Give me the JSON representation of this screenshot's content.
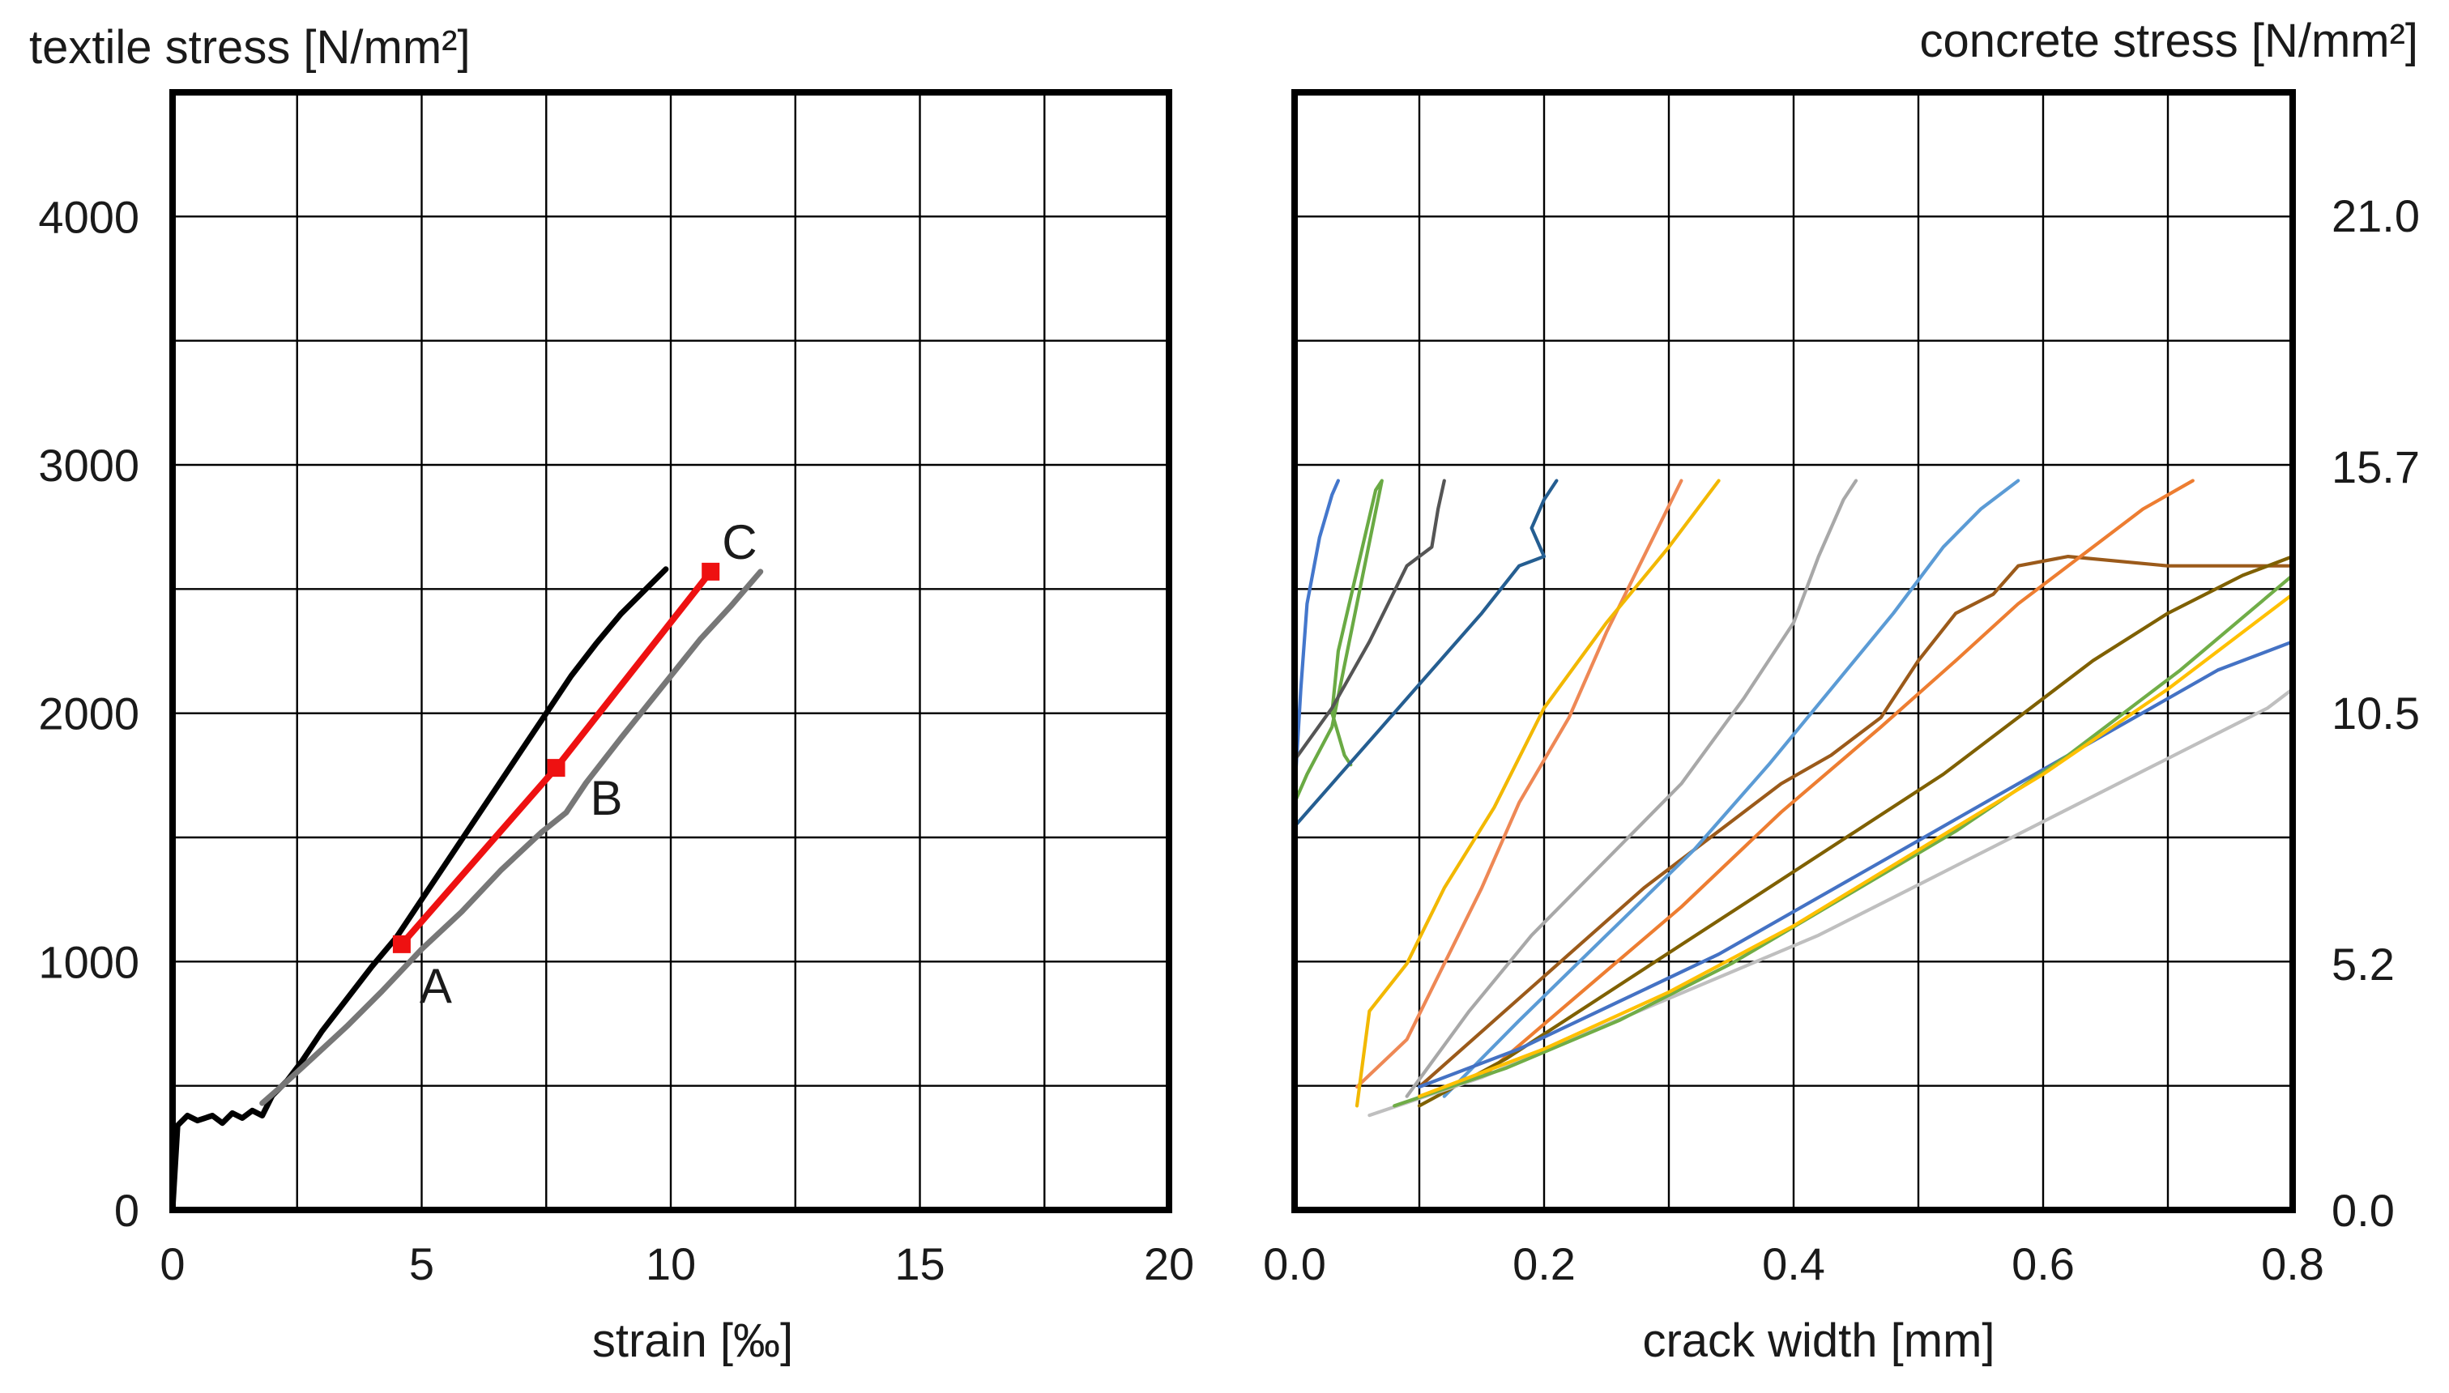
{
  "chart_data": [
    {
      "type": "line",
      "panel": "left",
      "title": "",
      "ylabel": "textile stress [N/mm²]",
      "xlabel": "strain [‰]",
      "xlim": [
        0,
        20
      ],
      "ylim": [
        0,
        4500
      ],
      "x_ticks": [
        0,
        5,
        10,
        15,
        20
      ],
      "y_ticks": [
        0,
        1000,
        2000,
        3000,
        4000
      ],
      "grid": true,
      "series": [
        {
          "name": "black",
          "color": "#000000",
          "x": [
            0,
            0.1,
            0.3,
            0.5,
            0.8,
            1.0,
            1.2,
            1.4,
            1.6,
            1.8,
            2.0,
            2.3,
            2.6,
            3.0,
            3.5,
            4.0,
            4.5,
            5.0,
            5.5,
            6.0,
            6.5,
            7.0,
            7.5,
            8.0,
            8.5,
            9.0,
            9.5,
            9.9
          ],
          "y": [
            0,
            340,
            380,
            360,
            380,
            350,
            390,
            370,
            400,
            380,
            460,
            520,
            600,
            720,
            850,
            980,
            1100,
            1250,
            1400,
            1550,
            1700,
            1850,
            2000,
            2150,
            2280,
            2400,
            2500,
            2580
          ]
        },
        {
          "name": "gray",
          "color": "#777777",
          "x": [
            1.8,
            2.2,
            2.8,
            3.5,
            4.2,
            5.0,
            5.8,
            6.6,
            7.4,
            7.9,
            8.3,
            9.0,
            9.8,
            10.6,
            11.2,
            11.8
          ],
          "y": [
            430,
            500,
            610,
            740,
            880,
            1050,
            1200,
            1370,
            1520,
            1600,
            1720,
            1900,
            2100,
            2300,
            2430,
            2570
          ]
        },
        {
          "name": "red",
          "color": "#ee1111",
          "x": [
            4.6,
            7.7,
            10.8
          ],
          "y": [
            1070,
            1780,
            2570
          ]
        }
      ],
      "points": [
        {
          "label": "A",
          "x": 4.6,
          "y": 1070
        },
        {
          "label": "B",
          "x": 7.7,
          "y": 1780
        },
        {
          "label": "C",
          "x": 10.8,
          "y": 2570
        }
      ]
    },
    {
      "type": "line",
      "panel": "right",
      "title": "",
      "ylabel": "concrete stress [N/mm²]",
      "xlabel": "crack width [mm]",
      "xlim": [
        0,
        0.8
      ],
      "ylim": [
        0,
        23.6
      ],
      "x_ticks": [
        0,
        0.2,
        0.4,
        0.6,
        0.8
      ],
      "y_ticks": [
        0,
        5.2,
        10.5,
        15.7,
        21.0
      ],
      "grid": true,
      "series": [
        {
          "name": "green",
          "color": "#6aaa44",
          "x": [
            0,
            0.01,
            0.03,
            0.04,
            0.07,
            0.065,
            0.05,
            0.035,
            0.03,
            0.04,
            0.045
          ],
          "y": [
            8.6,
            9.2,
            10.2,
            11.5,
            15.4,
            15.2,
            13.5,
            11.8,
            10.5,
            9.6,
            9.4
          ]
        },
        {
          "name": "blue-1",
          "color": "#4477cc",
          "x": [
            0,
            0.005,
            0.01,
            0.02,
            0.03,
            0.035
          ],
          "y": [
            8.8,
            11.0,
            12.8,
            14.2,
            15.1,
            15.4
          ]
        },
        {
          "name": "dark-gray",
          "color": "#555555",
          "x": [
            0,
            0.03,
            0.06,
            0.09,
            0.11,
            0.115,
            0.12
          ],
          "y": [
            9.5,
            10.6,
            12.0,
            13.6,
            14.0,
            14.8,
            15.4
          ]
        },
        {
          "name": "navy",
          "color": "#255e91",
          "x": [
            0,
            0.03,
            0.07,
            0.11,
            0.15,
            0.18,
            0.2,
            0.19,
            0.2,
            0.21
          ],
          "y": [
            8.1,
            9.0,
            10.2,
            11.4,
            12.6,
            13.6,
            13.8,
            14.4,
            15.0,
            15.4
          ]
        },
        {
          "name": "orange-1",
          "color": "#ee8855",
          "x": [
            0.05,
            0.09,
            0.12,
            0.15,
            0.18,
            0.22,
            0.25,
            0.28,
            0.31
          ],
          "y": [
            2.6,
            3.6,
            5.2,
            6.8,
            8.6,
            10.4,
            12.2,
            13.8,
            15.4
          ]
        },
        {
          "name": "yellow",
          "color": "#f2b800",
          "x": [
            0.05,
            0.06,
            0.09,
            0.12,
            0.16,
            0.2,
            0.25,
            0.3,
            0.34
          ],
          "y": [
            2.2,
            4.2,
            5.2,
            6.8,
            8.5,
            10.6,
            12.4,
            14.0,
            15.4
          ]
        },
        {
          "name": "silver-1",
          "color": "#a8a8a8",
          "x": [
            0.09,
            0.14,
            0.19,
            0.25,
            0.31,
            0.36,
            0.4,
            0.42,
            0.44,
            0.45
          ],
          "y": [
            2.4,
            4.2,
            5.8,
            7.4,
            9.0,
            10.8,
            12.4,
            13.8,
            15.0,
            15.4
          ]
        },
        {
          "name": "brown",
          "color": "#9b5a1a",
          "x": [
            0.1,
            0.16,
            0.22,
            0.28,
            0.34,
            0.39,
            0.43,
            0.47,
            0.5,
            0.53,
            0.56,
            0.58,
            0.62,
            0.7,
            0.8
          ],
          "y": [
            2.6,
            4.0,
            5.4,
            6.8,
            8.0,
            9.0,
            9.6,
            10.4,
            11.6,
            12.6,
            13.0,
            13.6,
            13.8,
            13.6,
            13.6
          ]
        },
        {
          "name": "steel-blue",
          "color": "#5b9bd5",
          "x": [
            0.12,
            0.18,
            0.25,
            0.32,
            0.38,
            0.43,
            0.48,
            0.52,
            0.55,
            0.58
          ],
          "y": [
            2.4,
            4.0,
            5.8,
            7.6,
            9.4,
            11.0,
            12.6,
            14.0,
            14.8,
            15.4
          ]
        },
        {
          "name": "orange-2",
          "color": "#ed7d31",
          "x": [
            0.15,
            0.23,
            0.31,
            0.39,
            0.47,
            0.53,
            0.58,
            0.63,
            0.68,
            0.72
          ],
          "y": [
            2.8,
            4.6,
            6.4,
            8.4,
            10.2,
            11.6,
            12.8,
            13.8,
            14.8,
            15.4
          ]
        },
        {
          "name": "olive",
          "color": "#7f6000",
          "x": [
            0.1,
            0.17,
            0.24,
            0.31,
            0.38,
            0.45,
            0.52,
            0.58,
            0.64,
            0.7,
            0.76,
            0.8
          ],
          "y": [
            2.2,
            3.2,
            4.4,
            5.6,
            6.8,
            8.0,
            9.2,
            10.4,
            11.6,
            12.6,
            13.4,
            13.8
          ]
        },
        {
          "name": "blue-2",
          "color": "#4472c4",
          "x": [
            0.1,
            0.18,
            0.26,
            0.34,
            0.42,
            0.5,
            0.58,
            0.66,
            0.74,
            0.8
          ],
          "y": [
            2.6,
            3.4,
            4.4,
            5.4,
            6.6,
            7.8,
            9.0,
            10.2,
            11.4,
            12.0
          ]
        },
        {
          "name": "silver-2",
          "color": "#bfbfbf",
          "x": [
            0.06,
            0.15,
            0.24,
            0.33,
            0.42,
            0.51,
            0.6,
            0.69,
            0.78,
            0.8
          ],
          "y": [
            2.0,
            2.8,
            3.8,
            4.8,
            5.8,
            7.0,
            8.2,
            9.4,
            10.6,
            11.0
          ]
        },
        {
          "name": "green-2",
          "color": "#70ad47",
          "x": [
            0.08,
            0.17,
            0.26,
            0.35,
            0.44,
            0.53,
            0.62,
            0.71,
            0.8
          ],
          "y": [
            2.2,
            3.0,
            4.0,
            5.2,
            6.6,
            8.0,
            9.6,
            11.4,
            13.4
          ]
        },
        {
          "name": "gold",
          "color": "#ffc000",
          "x": [
            0.1,
            0.2,
            0.3,
            0.4,
            0.5,
            0.6,
            0.7,
            0.8
          ],
          "y": [
            2.4,
            3.4,
            4.6,
            6.0,
            7.6,
            9.2,
            11.0,
            13.0
          ]
        }
      ]
    }
  ]
}
